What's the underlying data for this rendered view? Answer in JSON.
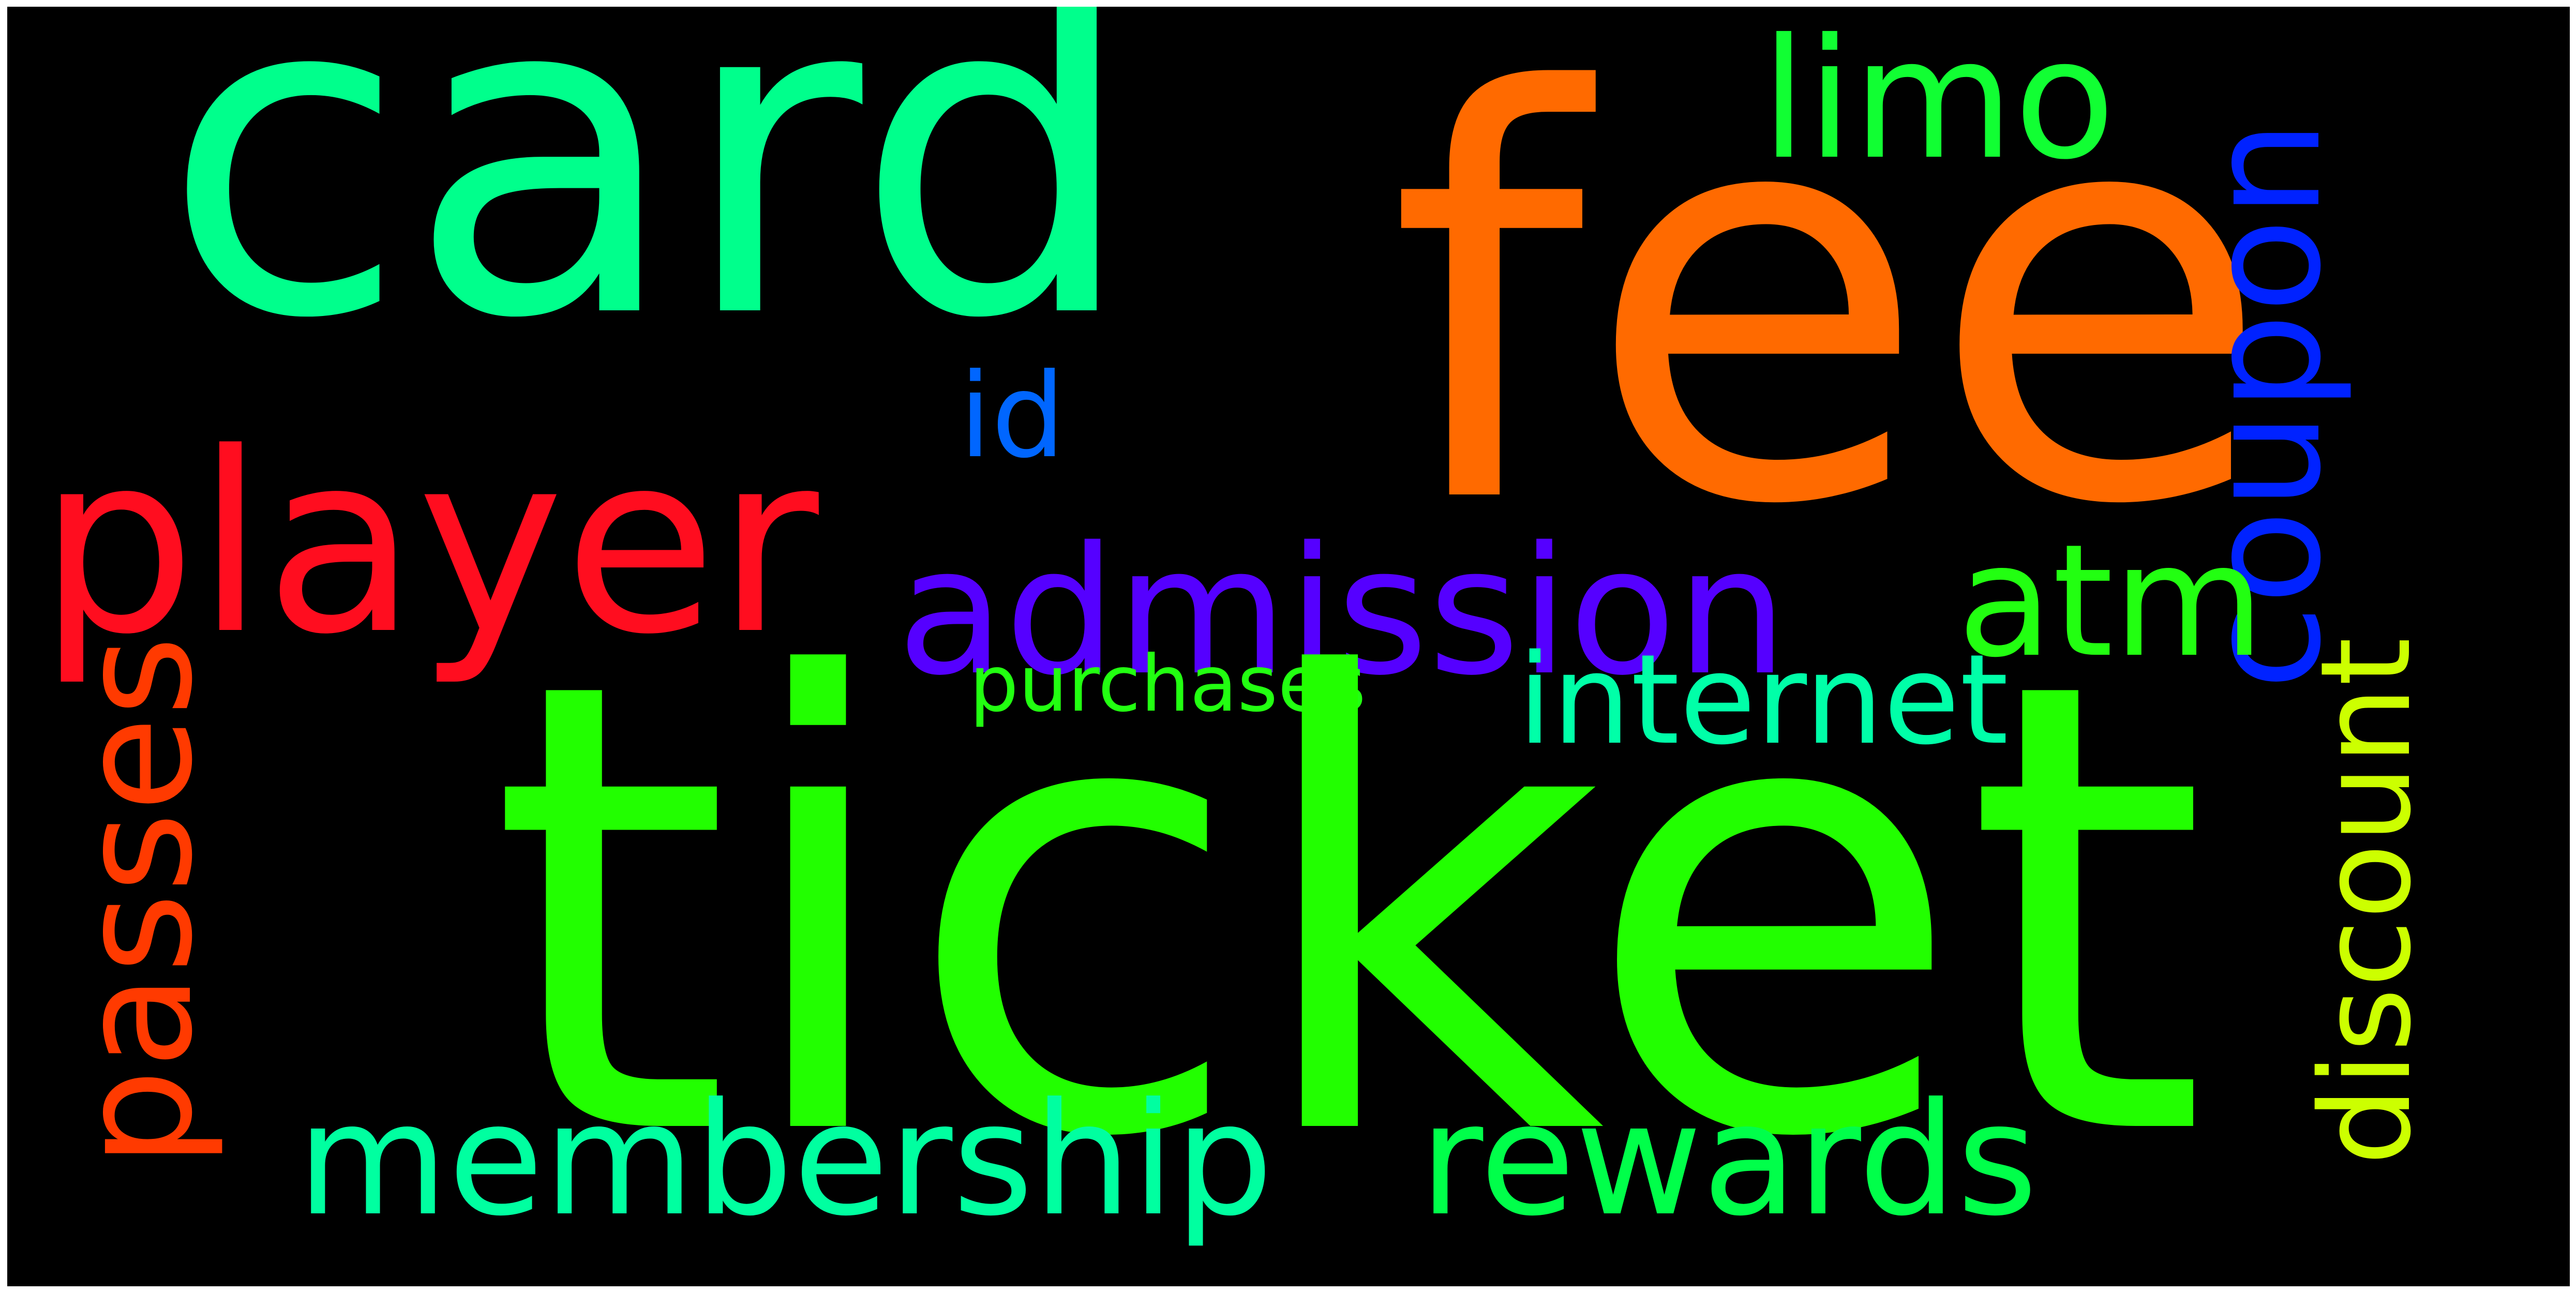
{
  "cloud": {
    "background": "#000000",
    "words": {
      "ticket": {
        "text": "ticket",
        "color": "#22ff00"
      },
      "card": {
        "text": "card",
        "color": "#00ff8c"
      },
      "fee": {
        "text": "fee",
        "color": "#ff6a00"
      },
      "coupon": {
        "text": "coupon",
        "color": "#0022ff"
      },
      "player": {
        "text": "player",
        "color": "#ff0d1f"
      },
      "admission": {
        "text": "admission",
        "color": "#5500ff"
      },
      "membership": {
        "text": "membership",
        "color": "#00ffa0"
      },
      "rewards": {
        "text": "rewards",
        "color": "#00ff4a"
      },
      "passes": {
        "text": "passes",
        "color": "#ff3a00"
      },
      "discount": {
        "text": "discount",
        "color": "#ccff00"
      },
      "limo": {
        "text": "limo",
        "color": "#11ff33"
      },
      "atm": {
        "text": "atm",
        "color": "#22ff11"
      },
      "internet": {
        "text": "internet",
        "color": "#00ffa8"
      },
      "id": {
        "text": "id",
        "color": "#0066ff"
      },
      "purchases": {
        "text": "purchases",
        "color": "#22ff11"
      }
    }
  }
}
